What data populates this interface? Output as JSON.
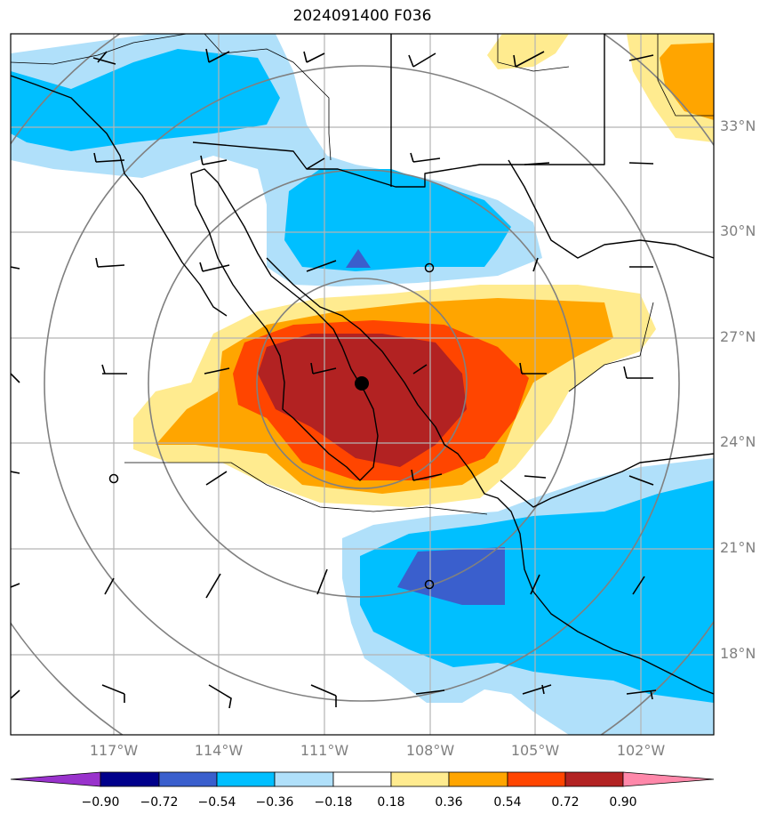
{
  "title": "2024091400 F036",
  "lat_labels": [
    "33°N",
    "30°N",
    "27°N",
    "24°N",
    "21°N",
    "18°N"
  ],
  "lon_labels": [
    "117°W",
    "114°W",
    "111°W",
    "108°W",
    "105°W",
    "102°W"
  ],
  "colorbar": {
    "ticks": [
      "−0.90",
      "−0.72",
      "−0.54",
      "−0.36",
      "−0.18",
      "0.18",
      "0.36",
      "0.54",
      "0.72",
      "0.90"
    ],
    "colors": [
      "#9932cc",
      "#00008b",
      "#3a5fcd",
      "#00bfff",
      "#b0e0fa",
      "#ffffff",
      "#ffeb8f",
      "#ffa500",
      "#ff4500",
      "#b22222",
      "#ff88aa"
    ],
    "extend": "both"
  },
  "markers": {
    "center_dot": "filled-circle",
    "triangle": "blue-triangle",
    "open_circles": [
      "open-circle-1",
      "open-circle-2",
      "open-circle-3"
    ]
  },
  "map": {
    "lat_range": [
      15.8,
      35.5
    ],
    "lon_range": [
      -119.9,
      -100.1
    ],
    "range_rings": 4,
    "wind_barbs": "black"
  }
}
